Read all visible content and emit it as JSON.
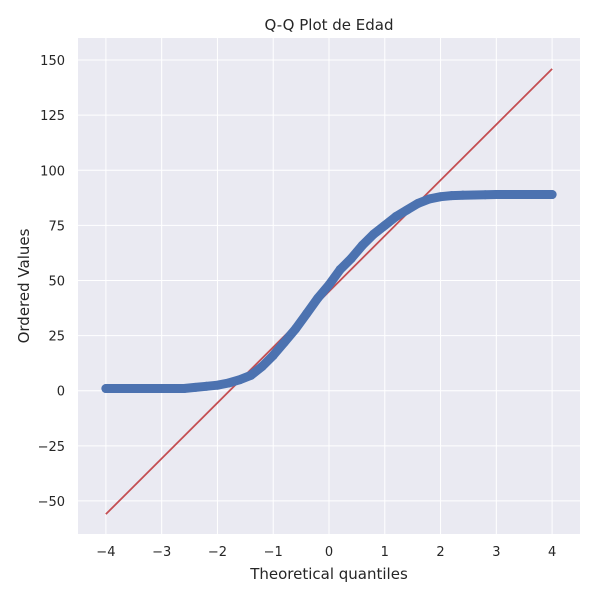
{
  "chart_data": {
    "type": "scatter",
    "title": "Q-Q Plot de Edad",
    "xlabel": "Theoretical quantiles",
    "ylabel": "Ordered Values",
    "xlim": [
      -4.5,
      4.5
    ],
    "ylim": [
      -65,
      160
    ],
    "x_ticks": [
      -4,
      -3,
      -2,
      -1,
      0,
      1,
      2,
      3,
      4
    ],
    "y_ticks": [
      -50,
      -25,
      0,
      25,
      50,
      75,
      100,
      125,
      150
    ],
    "grid": true,
    "colors": {
      "points": "#4c72b0",
      "fit_line": "#c44e52",
      "background": "#eaeaf2"
    },
    "series": [
      {
        "kind": "points",
        "x": [
          -4.0,
          -3.8,
          -3.6,
          -3.4,
          -3.2,
          -3.0,
          -2.8,
          -2.6,
          -2.4,
          -2.2,
          -2.0,
          -1.8,
          -1.6,
          -1.4,
          -1.2,
          -1.0,
          -0.8,
          -0.6,
          -0.4,
          -0.2,
          0.0,
          0.2,
          0.4,
          0.6,
          0.8,
          1.0,
          1.2,
          1.4,
          1.6,
          1.8,
          2.0,
          2.2,
          2.4,
          2.6,
          2.8,
          3.0,
          3.2,
          3.4,
          3.6,
          3.8,
          4.0
        ],
        "y": [
          1,
          1,
          1,
          1,
          1,
          1,
          1,
          1,
          1.5,
          2,
          2.5,
          3.5,
          5,
          7,
          11,
          16,
          22,
          28,
          35,
          42,
          48,
          55,
          60,
          66,
          71,
          75,
          79,
          82,
          85,
          87,
          88,
          88.5,
          88.7,
          88.8,
          88.9,
          89,
          89,
          89,
          89,
          89,
          89
        ]
      },
      {
        "kind": "line",
        "x": [
          -4.0,
          4.0
        ],
        "y": [
          -56,
          146
        ]
      }
    ]
  }
}
